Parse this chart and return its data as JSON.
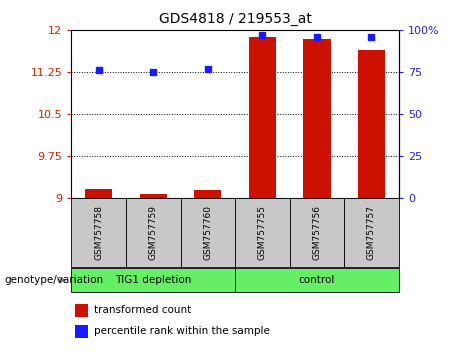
{
  "title": "GDS4818 / 219553_at",
  "samples": [
    "GSM757758",
    "GSM757759",
    "GSM757760",
    "GSM757755",
    "GSM757756",
    "GSM757757"
  ],
  "bar_values": [
    9.17,
    9.08,
    9.15,
    11.88,
    11.84,
    11.65
  ],
  "percentile_values": [
    76,
    75,
    77,
    97,
    96,
    96
  ],
  "ylim_left": [
    9,
    12
  ],
  "ylim_right": [
    0,
    100
  ],
  "yticks_left": [
    9,
    9.75,
    10.5,
    11.25,
    12
  ],
  "yticks_right": [
    0,
    25,
    50,
    75,
    100
  ],
  "bar_color": "#cc1100",
  "dot_color": "#1a1aff",
  "bar_width": 0.5,
  "bg_color": "#c8c8c8",
  "green_color": "#66ee66",
  "legend_items": [
    "transformed count",
    "percentile rank within the sample"
  ],
  "left_label_color": "#cc2200",
  "right_label_color": "#2222cc",
  "group1_label": "TIG1 depletion",
  "group2_label": "control",
  "xlabel": "genotype/variation"
}
